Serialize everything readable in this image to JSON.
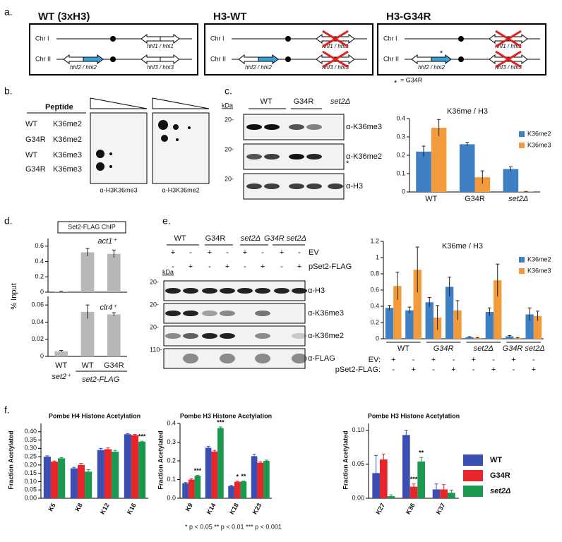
{
  "panel_labels": [
    "a.",
    "b.",
    "c.",
    "d.",
    "e.",
    "f."
  ],
  "a": {
    "boxes": [
      {
        "title": "WT (3xH3)",
        "chr": [
          "Chr I",
          "Chr II"
        ],
        "genes": [
          "hhf1 / hht1",
          "hhf2 / hht2",
          "hhf3 / hht3"
        ]
      },
      {
        "title": "H3-WT",
        "chr": [
          "Chr I",
          "Chr II"
        ],
        "genes": [
          "hhf1 / hht1",
          "hhf2 / hht2",
          "hhf3 / hht3"
        ]
      },
      {
        "title": "H3-G34R",
        "chr": [
          "Chr I",
          "Chr II"
        ],
        "genes": [
          "hhf1 / hht1",
          "hhf2 / hht2",
          "hhf3 / hht3"
        ]
      }
    ],
    "mutation_mark": "*",
    "legend_mark": "*",
    "legend": "= G34R"
  },
  "b": {
    "header": "Peptide",
    "rows": [
      [
        "WT",
        "K36me2"
      ],
      [
        "G34R",
        "K36me2"
      ],
      [
        "WT",
        "K36me3"
      ],
      [
        "G34R",
        "K36me3"
      ]
    ],
    "antibodies": [
      "α-H3K36me3",
      "α-H3K36me2"
    ]
  },
  "c": {
    "kda": "kDa",
    "lanes": [
      "WT",
      "G34R",
      "set2Δ"
    ],
    "markers": [
      "20-",
      "20-",
      "20-"
    ],
    "antibodies": [
      "α-K36me3",
      "α-K36me2",
      "α-H3"
    ],
    "note": "*"
  },
  "d": {
    "box": "Set2-FLAG ChIP"
  },
  "e": {
    "lanes": [
      "WT",
      "G34R",
      "set2Δ",
      "G34R set2Δ"
    ],
    "rows": [
      {
        "label": "EV",
        "signs": [
          "+",
          "-",
          "+",
          "-",
          "+",
          "-",
          "+",
          "-"
        ]
      },
      {
        "label": "pSet2-FLAG",
        "signs": [
          "-",
          "+",
          "-",
          "+",
          "-",
          "+",
          "-",
          "+"
        ]
      }
    ],
    "kda": "kDa",
    "markers": [
      "20-",
      "20-",
      "20-",
      "110-"
    ],
    "antibodies": [
      "α-H3",
      "α-K36me3",
      "α-K36me2",
      "α-FLAG"
    ]
  },
  "f": {
    "footnote": "* p < 0.05   ** p < 0.01   *** p < 0.001"
  },
  "chart_data": [
    {
      "type": "bar",
      "title": "K36me / H3",
      "categories": [
        "WT",
        "G34R",
        "set2Δ"
      ],
      "ylim": [
        0,
        0.4
      ],
      "yticks": [
        0,
        0.1,
        0.2,
        0.3,
        0.4
      ],
      "legend": "right",
      "series": [
        {
          "name": "K36me2",
          "color": "#3f7fc4",
          "values": [
            0.22,
            0.26,
            0.125
          ],
          "errors": [
            0.03,
            0.01,
            0.012
          ]
        },
        {
          "name": "K36me3",
          "color": "#f29a3c",
          "values": [
            0.35,
            0.08,
            0.003
          ],
          "errors": [
            0.045,
            0.035,
            0.0
          ]
        }
      ]
    },
    {
      "type": "bar",
      "ylabel": "% Input",
      "categories": [
        null,
        null,
        null
      ],
      "ylim": [
        0,
        0.7
      ],
      "yticks": [
        0,
        0.2,
        0.4,
        0.6
      ],
      "color": "#b8b8b8",
      "values": [
        0.01,
        0.52,
        0.5
      ],
      "errors": [
        0.003,
        0.05,
        0.05
      ],
      "annotations": [
        "act1⁺"
      ]
    },
    {
      "type": "bar",
      "categories": [
        "WT",
        "WT",
        "G34R"
      ],
      "ylim": [
        0,
        0.07
      ],
      "yticks": [
        0,
        0.02,
        0.04,
        0.06
      ],
      "color": "#b8b8b8",
      "values": [
        0.006,
        0.052,
        0.049
      ],
      "errors": [
        0.001,
        0.008,
        0.002
      ],
      "annotations": [
        "clr4⁺"
      ],
      "group_labels": [
        "set2⁺",
        "set2-FLAG"
      ]
    },
    {
      "type": "bar",
      "title": "K36me / H3",
      "categories": [
        null,
        null,
        null,
        null,
        null,
        null,
        null,
        null
      ],
      "ylim": [
        0,
        1.2
      ],
      "yticks": [
        0,
        0.2,
        0.4,
        0.6,
        0.8,
        1,
        1.2
      ],
      "legend": "right",
      "groups": [
        "WT",
        "G34R",
        "set2Δ",
        "G34R set2Δ"
      ],
      "conditions": [
        {
          "label": "EV:",
          "values": [
            "+",
            "-",
            "+",
            "-",
            "+",
            "-",
            "+",
            "-"
          ]
        },
        {
          "label": "pSet2-FLAG:",
          "values": [
            "-",
            "+",
            "-",
            "+",
            "-",
            "+",
            "-",
            "+"
          ]
        }
      ],
      "series": [
        {
          "name": "K36me2",
          "color": "#3f7fc4",
          "values": [
            0.38,
            0.35,
            0.45,
            0.64,
            0.02,
            0.33,
            0.03,
            0.3
          ],
          "errors": [
            0.03,
            0.04,
            0.06,
            0.12,
            0.005,
            0.05,
            0.01,
            0.08
          ]
        },
        {
          "name": "K36me3",
          "color": "#f29a3c",
          "values": [
            0.65,
            0.85,
            0.26,
            0.35,
            0.01,
            0.72,
            0.01,
            0.28
          ],
          "errors": [
            0.17,
            0.28,
            0.15,
            0.12,
            0.005,
            0.2,
            0.005,
            0.06
          ]
        }
      ]
    },
    {
      "type": "bar",
      "title": "Pombe H4 Histone Acetylation",
      "ylabel": "Fraction Acetylated",
      "categories": [
        "K5",
        "K8",
        "K12",
        "K16"
      ],
      "ylim": [
        0,
        0.45
      ],
      "yticks": [
        {
          "value": 0,
          "label": "0.00"
        },
        0.05,
        {
          "value": 0.1,
          "label": "0.10"
        },
        0.15,
        {
          "value": 0.2,
          "label": "0.20"
        },
        0.25,
        {
          "value": 0.3,
          "label": "0.30"
        },
        0.35,
        {
          "value": 0.4,
          "label": "0.40"
        }
      ],
      "annotations": [
        "***"
      ],
      "series": [
        {
          "name": "WT",
          "color": "#3b4fb3",
          "values": [
            0.25,
            0.18,
            0.29,
            0.385
          ],
          "errors": [
            0.005,
            0.006,
            0.01,
            0.004
          ]
        },
        {
          "name": "G34R",
          "color": "#e8262a",
          "values": [
            0.22,
            0.2,
            0.295,
            0.38
          ],
          "errors": [
            0.004,
            0.01,
            0.008,
            0.004
          ]
        },
        {
          "name": "set2Δ",
          "color": "#1a9850",
          "values": [
            0.24,
            0.16,
            0.28,
            0.34
          ],
          "errors": [
            0.004,
            0.012,
            0.008,
            0.003
          ]
        }
      ]
    },
    {
      "type": "bar",
      "title": "Pombe H3 Histone Acetylation",
      "ylabel": "Fraction Acetylated",
      "categories": [
        "K9",
        "K14",
        "K18",
        "K23"
      ],
      "ylim": [
        0,
        0.4
      ],
      "yticks": [
        {
          "value": 0,
          "label": "0.0"
        },
        0.1,
        0.2,
        0.3,
        0.4
      ],
      "annotations": [
        "***",
        "***",
        "*",
        "**"
      ],
      "series": [
        {
          "name": "WT",
          "color": "#3b4fb3",
          "values": [
            0.08,
            0.27,
            0.065,
            0.225
          ],
          "errors": [
            0.004,
            0.008,
            0.004,
            0.01
          ]
        },
        {
          "name": "G34R",
          "color": "#e8262a",
          "values": [
            0.1,
            0.25,
            0.088,
            0.19
          ],
          "errors": [
            0.004,
            0.006,
            0.003,
            0.004
          ]
        },
        {
          "name": "set2Δ",
          "color": "#1a9850",
          "values": [
            0.12,
            0.375,
            0.09,
            0.2
          ],
          "errors": [
            0.003,
            0.006,
            0.002,
            0.004
          ]
        }
      ]
    },
    {
      "type": "bar",
      "title": "Pombe H3 Histone Acetylation",
      "ylabel": "Fraction Acetylated",
      "categories": [
        "K27",
        "K36",
        "K37"
      ],
      "ylim": [
        0,
        0.11
      ],
      "yticks": [
        {
          "value": 0,
          "label": "0.00"
        },
        0.05,
        {
          "value": 0.1,
          "label": "0.10"
        }
      ],
      "legend": "right",
      "annotations": [
        "***",
        "**"
      ],
      "series": [
        {
          "name": "WT",
          "color": "#3b4fb3",
          "values": [
            0.037,
            0.093,
            0.013
          ],
          "errors": [
            0.026,
            0.007,
            0.008
          ]
        },
        {
          "name": "G34R",
          "color": "#e8262a",
          "values": [
            0.057,
            0.017,
            0.013
          ],
          "errors": [
            0.008,
            0.004,
            0.007
          ]
        },
        {
          "name": "set2Δ",
          "color": "#1a9850",
          "values": [
            0.003,
            0.054,
            0.008
          ],
          "errors": [
            0.002,
            0.006,
            0.004
          ]
        }
      ]
    }
  ]
}
